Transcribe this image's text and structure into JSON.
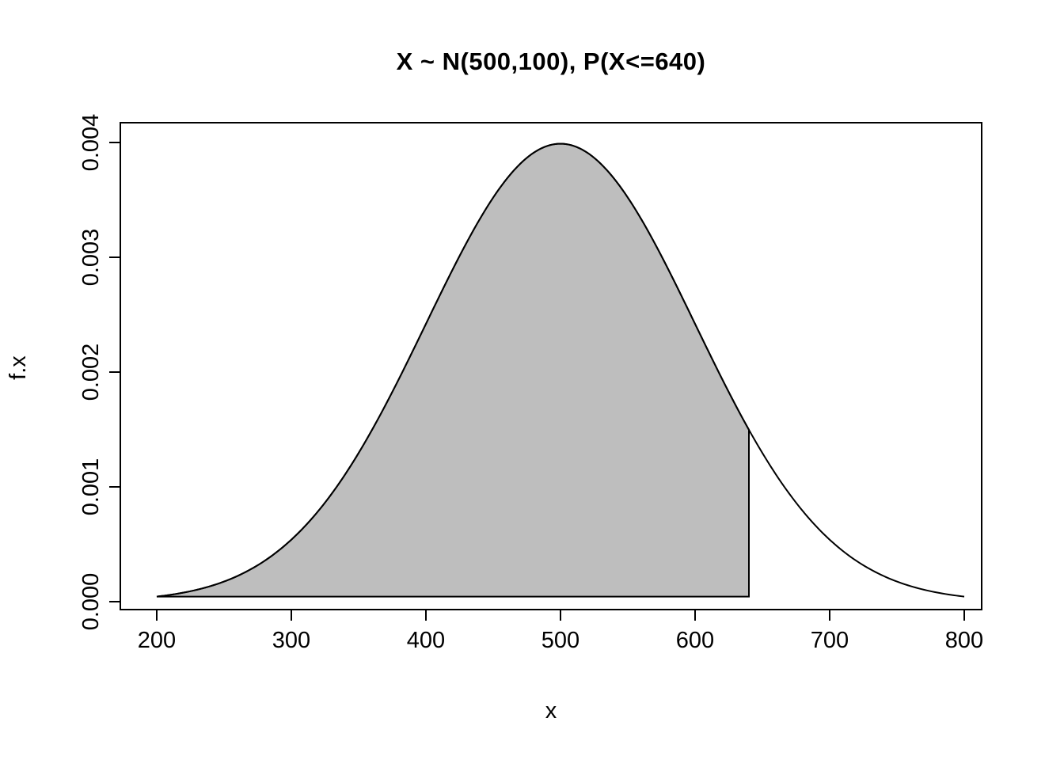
{
  "chart_data": {
    "type": "area",
    "title": "X ~ N(500,100), P(X<=640)",
    "xlabel": "x",
    "ylabel": "f.x",
    "distribution": {
      "type": "normal",
      "mean": 500,
      "sd": 100
    },
    "shade_region": {
      "from": 200,
      "to": 640
    },
    "shade_color": "#bebebe",
    "line_color": "#000000",
    "background_color": "#ffffff",
    "x_range": [
      200,
      800
    ],
    "ylim": [
      0,
      0.004
    ],
    "grid": false,
    "legend": "none",
    "x_tick_values": [
      200,
      300,
      400,
      500,
      600,
      700,
      800
    ],
    "x_ticks": [
      "200",
      "300",
      "400",
      "500",
      "600",
      "700",
      "800"
    ],
    "y_tick_values": [
      0,
      0.001,
      0.002,
      0.003,
      0.004
    ],
    "y_ticks": [
      "0.000",
      "0.001",
      "0.002",
      "0.003",
      "0.004"
    ],
    "series": [
      {
        "name": "f.x",
        "x": [
          200,
          250,
          300,
          350,
          400,
          450,
          500,
          550,
          600,
          640,
          650,
          700,
          750,
          800
        ],
        "y": [
          4.43e-05,
          0.0001753,
          0.0005399,
          0.0012952,
          0.0024197,
          0.0035207,
          0.0039894,
          0.0035207,
          0.0024197,
          0.0014973,
          0.0012952,
          0.0005399,
          0.0001753,
          4.43e-05
        ]
      }
    ]
  }
}
